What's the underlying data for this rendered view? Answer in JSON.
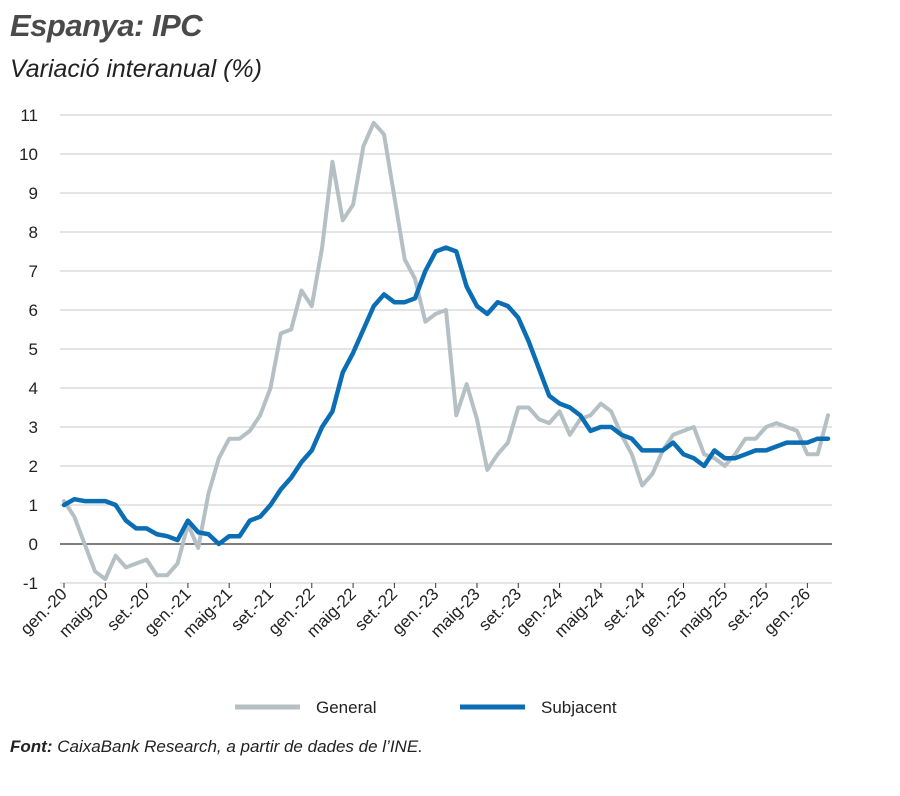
{
  "title": "Espanya: IPC",
  "subtitle": "Variació interanual (%)",
  "source": {
    "label": "Font:",
    "text": " CaixaBank Research, a partir de dades de l’INE."
  },
  "colors": {
    "general": "#b5c0c5",
    "subjacent": "#0b6eb4",
    "grid": "#c8c8c8"
  },
  "chart_data": {
    "type": "line",
    "ylim": [
      -1,
      11
    ],
    "yticks": [
      -1,
      0,
      1,
      2,
      3,
      4,
      5,
      6,
      7,
      8,
      9,
      10,
      11
    ],
    "x": [
      "gen.-20",
      "feb.-20",
      "març-20",
      "abr.-20",
      "maig-20",
      "juny-20",
      "jul.-20",
      "ag.-20",
      "set.-20",
      "oct.-20",
      "nov.-20",
      "des.-20",
      "gen.-21",
      "feb.-21",
      "març-21",
      "abr.-21",
      "maig-21",
      "juny-21",
      "jul.-21",
      "ag.-21",
      "set.-21",
      "oct.-21",
      "nov.-21",
      "des.-21",
      "gen.-22",
      "feb.-22",
      "març-22",
      "abr.-22",
      "maig-22",
      "juny-22",
      "jul.-22",
      "ag.-22",
      "set.-22",
      "oct.-22",
      "nov.-22",
      "des.-22",
      "gen.-23",
      "feb.-23",
      "març-23",
      "abr.-23",
      "maig-23",
      "juny-23",
      "jul.-23",
      "ag.-23",
      "set.-23",
      "oct.-23",
      "nov.-23",
      "des.-23",
      "gen.-24",
      "feb.-24",
      "març-24",
      "abr.-24",
      "maig-24",
      "juny-24",
      "jul.-24",
      "ag.-24",
      "set.-24",
      "oct.-24",
      "nov.-24",
      "des.-24",
      "gen.-25",
      "feb.-25",
      "març-25",
      "abr.-25",
      "maig-25",
      "juny-25",
      "jul.-25",
      "ag.-25",
      "set.-25",
      "oct.-25",
      "nov.-25",
      "des.-25",
      "gen.-26",
      "feb.-26",
      "març-26"
    ],
    "xtick_labels": [
      "gen.-20",
      "maig-20",
      "set.-20",
      "gen.-21",
      "maig-21",
      "set.-21",
      "gen.-22",
      "maig-22",
      "set.-22",
      "gen.-23",
      "maig-23",
      "set.-23",
      "gen.-24",
      "maig-24",
      "set.-24",
      "gen.-25",
      "maig-25",
      "set.-25",
      "gen.-26"
    ],
    "xtick_step": 4,
    "series": [
      {
        "name": "General",
        "values": [
          1.1,
          0.7,
          0.0,
          -0.7,
          -0.9,
          -0.3,
          -0.6,
          -0.5,
          -0.4,
          -0.8,
          -0.8,
          -0.5,
          0.5,
          -0.1,
          1.3,
          2.2,
          2.7,
          2.7,
          2.9,
          3.3,
          4.0,
          5.4,
          5.5,
          6.5,
          6.1,
          7.6,
          9.8,
          8.3,
          8.7,
          10.2,
          10.8,
          10.5,
          8.9,
          7.3,
          6.8,
          5.7,
          5.9,
          6.0,
          3.3,
          4.1,
          3.2,
          1.9,
          2.3,
          2.6,
          3.5,
          3.5,
          3.2,
          3.1,
          3.4,
          2.8,
          3.2,
          3.3,
          3.6,
          3.4,
          2.8,
          2.3,
          1.5,
          1.8,
          2.4,
          2.8,
          2.9,
          3.0,
          2.3,
          2.2,
          2.0,
          2.3,
          2.7,
          2.7,
          3.0,
          3.1,
          3.0,
          2.9,
          2.3,
          2.3,
          3.3
        ]
      },
      {
        "name": "Subjacent",
        "values": [
          1.0,
          1.15,
          1.1,
          1.1,
          1.1,
          1.0,
          0.6,
          0.4,
          0.4,
          0.25,
          0.2,
          0.1,
          0.6,
          0.3,
          0.25,
          0.0,
          0.2,
          0.2,
          0.6,
          0.7,
          1.0,
          1.4,
          1.7,
          2.1,
          2.4,
          3.0,
          3.4,
          4.4,
          4.9,
          5.5,
          6.1,
          6.4,
          6.2,
          6.2,
          6.3,
          7.0,
          7.5,
          7.6,
          7.5,
          6.6,
          6.1,
          5.9,
          6.2,
          6.1,
          5.8,
          5.2,
          4.5,
          3.8,
          3.6,
          3.5,
          3.3,
          2.9,
          3.0,
          3.0,
          2.8,
          2.7,
          2.4,
          2.4,
          2.4,
          2.6,
          2.3,
          2.2,
          2.0,
          2.4,
          2.2,
          2.2,
          2.3,
          2.4,
          2.4,
          2.5,
          2.6,
          2.6,
          2.6,
          2.7,
          2.7
        ]
      }
    ],
    "legend_position": "bottom",
    "grid": true
  }
}
